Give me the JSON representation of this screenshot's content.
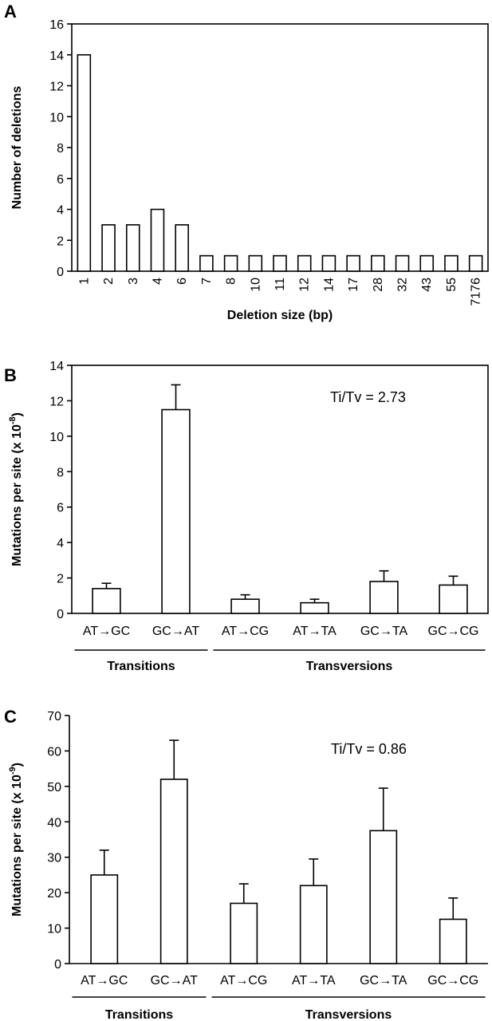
{
  "chart_data": [
    {
      "panel": "A",
      "type": "bar",
      "ylabel": "Number of deletions",
      "xlabel": "Deletion size (bp)",
      "ylim": [
        0,
        16
      ],
      "yticks": [
        "0",
        "2",
        "4",
        "6",
        "8",
        "10",
        "12",
        "14",
        "16"
      ],
      "categories": [
        "1",
        "2",
        "3",
        "4",
        "6",
        "7",
        "8",
        "10",
        "11",
        "12",
        "14",
        "17",
        "28",
        "32",
        "43",
        "55",
        "7176"
      ],
      "values": [
        14,
        3,
        3,
        4,
        3,
        1,
        1,
        1,
        1,
        1,
        1,
        1,
        1,
        1,
        1,
        1,
        1
      ]
    },
    {
      "panel": "B",
      "type": "bar",
      "ylabel_prefix": "Mutations per site (x 10",
      "ylabel_sup": "-8",
      "ylabel_suffix": ")",
      "annotation": "Ti/Tv = 2.73",
      "ylim": [
        0,
        14
      ],
      "yticks": [
        "0",
        "2",
        "4",
        "6",
        "8",
        "10",
        "12",
        "14"
      ],
      "categories": [
        "AT→GC",
        "GC→AT",
        "AT→CG",
        "AT→TA",
        "GC→TA",
        "GC→CG"
      ],
      "values": [
        1.4,
        11.5,
        0.8,
        0.6,
        1.8,
        1.6
      ],
      "errors": [
        0.3,
        1.4,
        0.25,
        0.2,
        0.6,
        0.5
      ],
      "groups": [
        {
          "label": "Transitions",
          "from": 0,
          "to": 1
        },
        {
          "label": "Transversions",
          "from": 2,
          "to": 5
        }
      ]
    },
    {
      "panel": "C",
      "type": "bar",
      "ylabel_prefix": "Mutations per site (x 10",
      "ylabel_sup": "-9",
      "ylabel_suffix": ")",
      "annotation": "Ti/Tv = 0.86",
      "ylim": [
        0,
        70
      ],
      "yticks": [
        "0",
        "10",
        "20",
        "30",
        "40",
        "50",
        "60",
        "70"
      ],
      "categories": [
        "AT→GC",
        "GC→AT",
        "AT→CG",
        "AT→TA",
        "GC→TA",
        "GC→CG"
      ],
      "values": [
        25,
        52,
        17,
        22,
        37.5,
        12.5
      ],
      "errors": [
        7,
        11,
        5.5,
        7.5,
        12,
        6
      ],
      "groups": [
        {
          "label": "Transitions",
          "from": 0,
          "to": 1
        },
        {
          "label": "Transversions",
          "from": 2,
          "to": 5
        }
      ]
    }
  ]
}
